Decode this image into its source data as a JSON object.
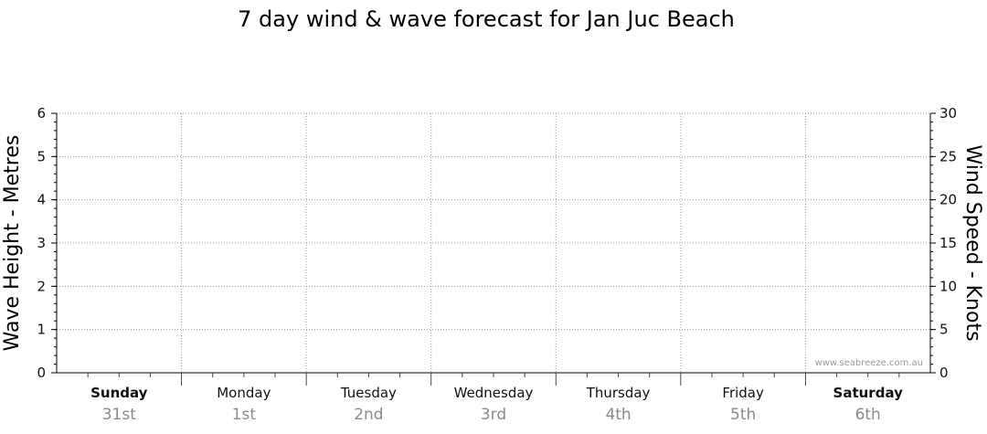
{
  "chart_data": {
    "type": "line",
    "title": "7 day wind & wave forecast for Jan Juc Beach",
    "ylabel_left": "Wave Height - Metres",
    "ylabel_right": "Wind Speed - Knots",
    "ylim_left": [
      0,
      6
    ],
    "ylim_right": [
      0,
      30
    ],
    "yticks_left": [
      "0",
      "1",
      "2",
      "3",
      "4",
      "5",
      "6"
    ],
    "yticks_right": [
      "0",
      "5",
      "10",
      "15",
      "20",
      "25",
      "30"
    ],
    "grid": true,
    "days": [
      {
        "name": "Sunday",
        "date": "31st",
        "bold": true
      },
      {
        "name": "Monday",
        "date": "1st",
        "bold": false
      },
      {
        "name": "Tuesday",
        "date": "2nd",
        "bold": false
      },
      {
        "name": "Wednesday",
        "date": "3rd",
        "bold": false
      },
      {
        "name": "Thursday",
        "date": "4th",
        "bold": false
      },
      {
        "name": "Friday",
        "date": "5th",
        "bold": false
      },
      {
        "name": "Saturday",
        "date": "6th",
        "bold": true
      }
    ],
    "series": [],
    "watermark": "www.seabreeze.com.au"
  }
}
